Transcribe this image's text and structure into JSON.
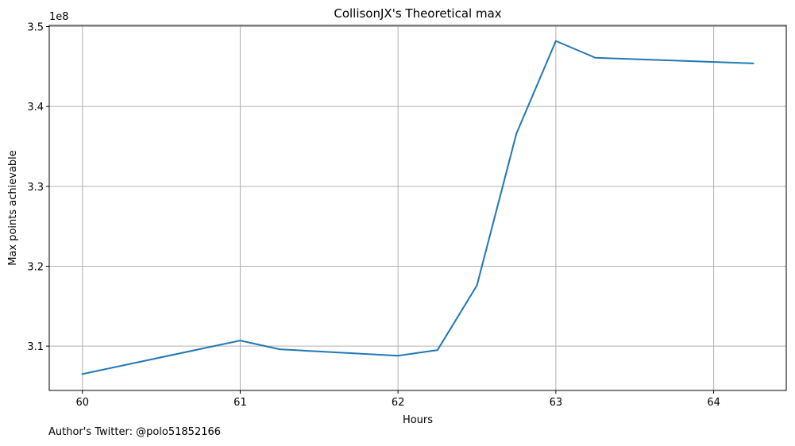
{
  "chart_data": {
    "type": "line",
    "title": "CollisonJX's Theoretical max",
    "xlabel": "Hours",
    "ylabel": "Max points achievable",
    "y_offset_label": "1e8",
    "y_scale": 100000000,
    "xlim": [
      59.79,
      64.46
    ],
    "ylim": [
      3.0445,
      3.5015
    ],
    "x_ticks": [
      60,
      61,
      62,
      63,
      64
    ],
    "x_tick_labels": [
      "60",
      "61",
      "62",
      "63",
      "64"
    ],
    "y_ticks": [
      3.1,
      3.2,
      3.3,
      3.4,
      3.5
    ],
    "y_tick_labels": [
      "3.1",
      "3.2",
      "3.3",
      "3.4",
      "3.5"
    ],
    "grid": true,
    "series": [
      {
        "color": "#1f77b4",
        "x": [
          60,
          61,
          61.25,
          62,
          62.25,
          62.5,
          62.75,
          63,
          63.25,
          64.25
        ],
        "y": [
          306500000,
          310700000,
          309600000,
          308800000,
          309500000,
          317600000,
          336600000,
          348200000,
          346100000,
          345400000
        ]
      }
    ]
  },
  "footer": {
    "text": "Author's Twitter: @polo51852166"
  }
}
